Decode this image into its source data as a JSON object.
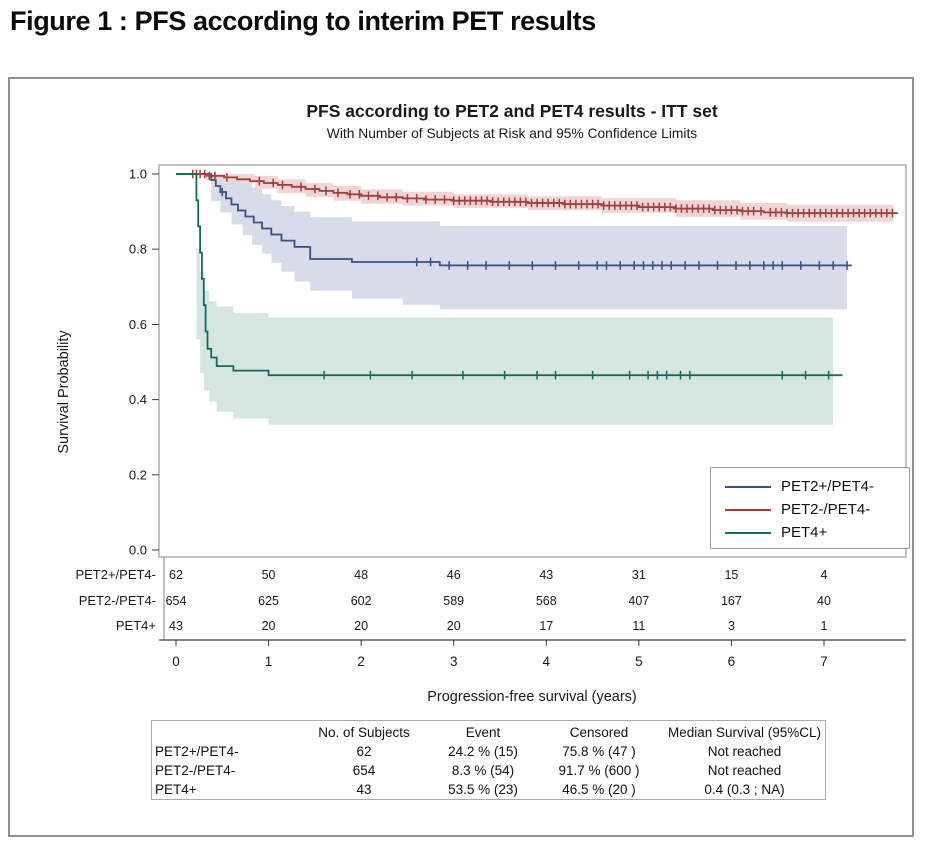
{
  "page": {
    "figure_title": "Figure 1 : PFS according to interim PET results"
  },
  "chart_data": {
    "type": "line",
    "subtype": "kaplan-meier-step",
    "title": "PFS according to PET2 and PET4 results - ITT set",
    "subtitle": "With Number of Subjects at Risk and 95% Confidence Limits",
    "xlabel": "Progression-free survival (years)",
    "ylabel": "Survival Probability",
    "xlim": [
      0,
      7.9
    ],
    "ylim": [
      0.0,
      1.0
    ],
    "xticks": [
      0,
      1,
      2,
      3,
      4,
      5,
      6,
      7
    ],
    "yticks": [
      0.0,
      0.2,
      0.4,
      0.6,
      0.8,
      1.0
    ],
    "grid": false,
    "legend_position": "bottom-right",
    "series": [
      {
        "name": "PET2+/PET4-",
        "color": "#3B5083",
        "band_color": "#D7DBEA",
        "steps": [
          [
            0,
            1.0
          ],
          [
            0.3,
            1.0
          ],
          [
            0.38,
            0.984
          ],
          [
            0.43,
            0.968
          ],
          [
            0.48,
            0.952
          ],
          [
            0.54,
            0.935
          ],
          [
            0.6,
            0.919
          ],
          [
            0.67,
            0.903
          ],
          [
            0.75,
            0.887
          ],
          [
            0.84,
            0.871
          ],
          [
            0.93,
            0.855
          ],
          [
            1.03,
            0.839
          ],
          [
            1.14,
            0.823
          ],
          [
            1.28,
            0.806
          ],
          [
            1.45,
            0.774
          ],
          [
            1.9,
            0.766
          ],
          [
            2.85,
            0.757
          ],
          [
            7.3,
            0.757
          ]
        ],
        "band_upper": [
          [
            0.38,
            1.0
          ],
          [
            0.62,
            1.0
          ],
          [
            0.72,
            0.984
          ],
          [
            0.82,
            0.964
          ],
          [
            0.93,
            0.946
          ],
          [
            1.03,
            0.93
          ],
          [
            1.14,
            0.915
          ],
          [
            1.28,
            0.9
          ],
          [
            1.45,
            0.885
          ],
          [
            1.9,
            0.874
          ],
          [
            2.85,
            0.862
          ],
          [
            7.25,
            0.862
          ]
        ],
        "band_lower": [
          [
            0.38,
            0.928
          ],
          [
            0.48,
            0.898
          ],
          [
            0.6,
            0.866
          ],
          [
            0.72,
            0.838
          ],
          [
            0.82,
            0.812
          ],
          [
            0.93,
            0.788
          ],
          [
            1.03,
            0.764
          ],
          [
            1.14,
            0.74
          ],
          [
            1.28,
            0.714
          ],
          [
            1.45,
            0.69
          ],
          [
            1.9,
            0.668
          ],
          [
            2.45,
            0.652
          ],
          [
            2.85,
            0.64
          ],
          [
            7.25,
            0.64
          ]
        ],
        "censors": [
          0.5,
          2.6,
          2.75,
          2.95,
          3.15,
          3.35,
          3.6,
          3.85,
          4.1,
          4.35,
          4.55,
          4.65,
          4.8,
          4.95,
          5.05,
          5.15,
          5.25,
          5.35,
          5.5,
          5.65,
          5.85,
          6.05,
          6.2,
          6.35,
          6.45,
          6.55,
          6.75,
          6.95,
          7.1,
          7.25
        ]
      },
      {
        "name": "PET2-/PET4-",
        "color": "#A23F3D",
        "band_color": "#F1D5D4",
        "steps": [
          [
            0,
            1.0
          ],
          [
            0.32,
            1.0
          ],
          [
            0.36,
            0.995
          ],
          [
            0.52,
            0.991
          ],
          [
            0.66,
            0.986
          ],
          [
            0.8,
            0.981
          ],
          [
            0.95,
            0.976
          ],
          [
            1.1,
            0.971
          ],
          [
            1.25,
            0.966
          ],
          [
            1.4,
            0.96
          ],
          [
            1.55,
            0.955
          ],
          [
            1.7,
            0.95
          ],
          [
            1.85,
            0.946
          ],
          [
            2.0,
            0.942
          ],
          [
            2.2,
            0.938
          ],
          [
            2.45,
            0.935
          ],
          [
            2.7,
            0.932
          ],
          [
            3.0,
            0.929
          ],
          [
            3.4,
            0.926
          ],
          [
            3.8,
            0.923
          ],
          [
            4.2,
            0.92
          ],
          [
            4.6,
            0.916
          ],
          [
            5.0,
            0.912
          ],
          [
            5.4,
            0.908
          ],
          [
            5.8,
            0.904
          ],
          [
            6.1,
            0.901
          ],
          [
            6.35,
            0.898
          ],
          [
            6.6,
            0.896
          ],
          [
            7.8,
            0.896
          ]
        ],
        "band_upper": [
          [
            0.32,
            1.0
          ],
          [
            0.7,
            1.0
          ],
          [
            0.85,
            0.995
          ],
          [
            1.1,
            0.986
          ],
          [
            1.4,
            0.976
          ],
          [
            1.7,
            0.968
          ],
          [
            2.0,
            0.959
          ],
          [
            2.45,
            0.953
          ],
          [
            3.0,
            0.946
          ],
          [
            3.8,
            0.941
          ],
          [
            4.6,
            0.936
          ],
          [
            5.4,
            0.93
          ],
          [
            6.1,
            0.923
          ],
          [
            6.6,
            0.918
          ],
          [
            7.75,
            0.918
          ]
        ],
        "band_lower": [
          [
            0.32,
            0.984
          ],
          [
            0.52,
            0.977
          ],
          [
            0.85,
            0.961
          ],
          [
            1.1,
            0.949
          ],
          [
            1.4,
            0.939
          ],
          [
            1.7,
            0.929
          ],
          [
            2.0,
            0.921
          ],
          [
            2.45,
            0.916
          ],
          [
            3.0,
            0.91
          ],
          [
            3.8,
            0.904
          ],
          [
            4.6,
            0.897
          ],
          [
            5.4,
            0.886
          ],
          [
            6.1,
            0.879
          ],
          [
            6.6,
            0.873
          ],
          [
            7.75,
            0.873
          ]
        ],
        "censors": [
          0.18,
          0.22,
          0.26,
          0.31,
          0.36,
          0.42,
          0.55,
          0.9,
          1.05,
          1.15,
          1.35,
          1.5,
          1.62,
          1.75,
          1.88,
          1.98,
          2.08,
          2.18,
          2.28,
          2.38,
          2.5,
          2.6,
          2.7,
          2.8,
          2.9,
          3.0,
          3.06,
          3.12,
          3.18,
          3.24,
          3.3,
          3.36,
          3.42,
          3.48,
          3.54,
          3.6,
          3.66,
          3.72,
          3.78,
          3.84,
          3.9,
          3.96,
          4.02,
          4.08,
          4.14,
          4.2,
          4.26,
          4.32,
          4.38,
          4.44,
          4.5,
          4.56,
          4.62,
          4.68,
          4.74,
          4.8,
          4.86,
          4.92,
          4.98,
          5.04,
          5.1,
          5.16,
          5.22,
          5.28,
          5.34,
          5.4,
          5.46,
          5.52,
          5.58,
          5.64,
          5.7,
          5.76,
          5.82,
          5.88,
          5.94,
          6.0,
          6.06,
          6.12,
          6.18,
          6.24,
          6.32,
          6.42,
          6.48,
          6.54,
          6.6,
          6.66,
          6.72,
          6.78,
          6.84,
          6.9,
          6.96,
          7.02,
          7.08,
          7.14,
          7.2,
          7.26,
          7.32,
          7.38,
          7.44,
          7.5,
          7.56,
          7.62,
          7.68,
          7.74
        ]
      },
      {
        "name": "PET4+",
        "color": "#15695F",
        "band_color": "#D5E6E0",
        "steps": [
          [
            0,
            1.0
          ],
          [
            0.2,
            1.0
          ],
          [
            0.22,
            0.93
          ],
          [
            0.24,
            0.861
          ],
          [
            0.26,
            0.791
          ],
          [
            0.28,
            0.721
          ],
          [
            0.3,
            0.651
          ],
          [
            0.32,
            0.581
          ],
          [
            0.34,
            0.535
          ],
          [
            0.38,
            0.512
          ],
          [
            0.44,
            0.489
          ],
          [
            0.62,
            0.477
          ],
          [
            1.0,
            0.465
          ],
          [
            7.2,
            0.465
          ]
        ],
        "band_upper": [
          [
            0.22,
            0.8
          ],
          [
            0.26,
            0.74
          ],
          [
            0.3,
            0.69
          ],
          [
            0.36,
            0.662
          ],
          [
            0.44,
            0.648
          ],
          [
            0.62,
            0.63
          ],
          [
            1.0,
            0.618
          ],
          [
            7.1,
            0.612
          ]
        ],
        "band_lower": [
          [
            0.22,
            0.56
          ],
          [
            0.26,
            0.47
          ],
          [
            0.3,
            0.425
          ],
          [
            0.36,
            0.395
          ],
          [
            0.44,
            0.368
          ],
          [
            0.62,
            0.35
          ],
          [
            1.0,
            0.333
          ],
          [
            7.1,
            0.328
          ]
        ],
        "censors": [
          1.6,
          2.1,
          2.55,
          3.1,
          3.55,
          3.9,
          4.1,
          4.5,
          4.9,
          5.1,
          5.2,
          5.3,
          5.45,
          5.55,
          6.55,
          6.8,
          7.05
        ]
      }
    ],
    "at_risk": {
      "times": [
        0,
        1,
        2,
        3,
        4,
        5,
        6,
        7
      ],
      "rows": [
        {
          "label": "PET2+/PET4-",
          "counts": [
            62,
            50,
            48,
            46,
            43,
            31,
            15,
            4
          ]
        },
        {
          "label": "PET2-/PET4-",
          "counts": [
            654,
            625,
            602,
            589,
            568,
            407,
            167,
            40
          ]
        },
        {
          "label": "PET4+",
          "counts": [
            43,
            20,
            20,
            20,
            17,
            11,
            3,
            1
          ]
        }
      ]
    }
  },
  "summary_table": {
    "headers": [
      "",
      "No. of Subjects",
      "Event",
      "Censored",
      "Median Survival (95%CL)"
    ],
    "rows": [
      [
        "PET2+/PET4-",
        "62",
        "24.2 % (15)",
        "75.8 % (47 )",
        "Not reached"
      ],
      [
        "PET2-/PET4-",
        "654",
        "8.3 % (54)",
        "91.7 % (600 )",
        "Not reached"
      ],
      [
        "PET4+",
        "43",
        "53.5 % (23)",
        "46.5 % (20 )",
        "0.4 (0.3 ; NA)"
      ]
    ]
  }
}
